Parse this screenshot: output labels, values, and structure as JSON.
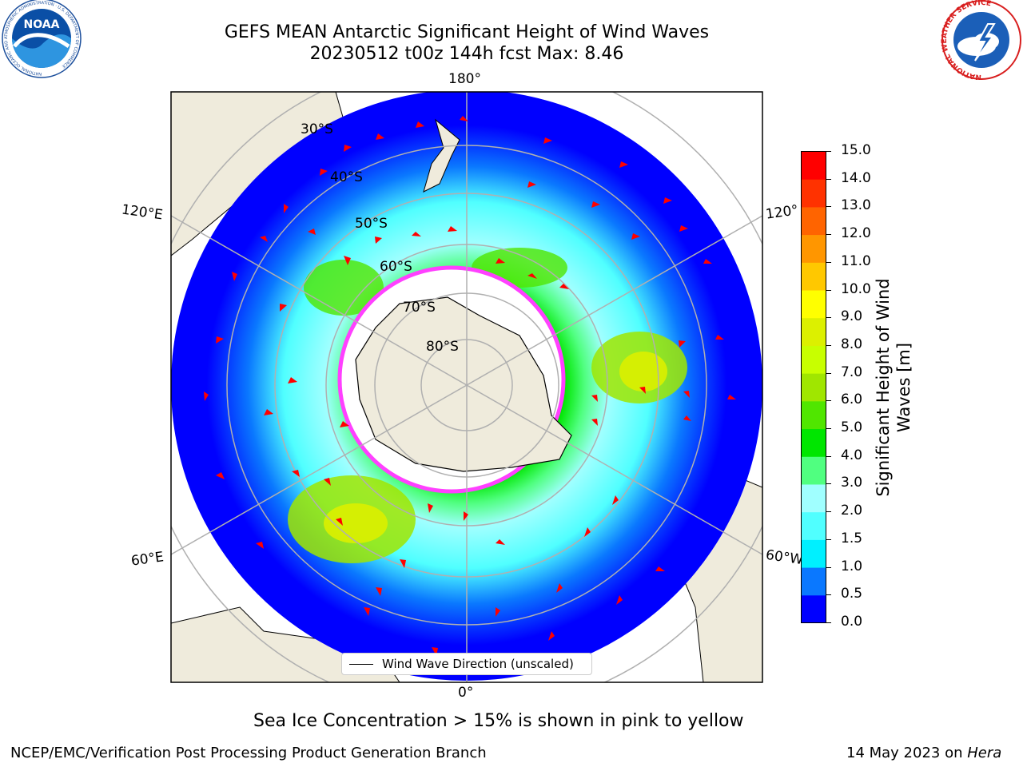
{
  "header": {
    "title_line1": "GEFS MEAN Antarctic Significant Height of Wind Waves",
    "title_line2": "20230512 t00z 144h fcst   Max: 8.46"
  },
  "logos": {
    "noaa_text": "NOAA",
    "noaa_ring_text": "NATIONAL OCEANIC AND ATMOSPHERIC ADMINISTRATION · U.S. DEPARTMENT OF COMMERCE",
    "nws_ring_text": "NATIONAL WEATHER SERVICE"
  },
  "map": {
    "projection": "south polar stereographic",
    "longitude_labels": {
      "top": "180°",
      "bottom": "0°",
      "left_upper": "120°E",
      "left_lower": "60°E",
      "right_upper": "120°",
      "right_lower": "60°W"
    },
    "latitude_labels": [
      "30°S",
      "40°S",
      "50°S",
      "60°S",
      "70°S",
      "80°S"
    ],
    "legend_label": "Wind Wave Direction (unscaled)",
    "arrow_color": "#ff0000",
    "land_color": "#efebdc"
  },
  "colorbar": {
    "label": "Significant Height of Wind Waves [m]",
    "ticks": [
      "0.0",
      "0.5",
      "1.0",
      "1.5",
      "2.0",
      "3.0",
      "4.0",
      "5.0",
      "6.0",
      "7.0",
      "8.0",
      "9.0",
      "10.0",
      "11.0",
      "12.0",
      "13.0",
      "14.0",
      "15.0"
    ],
    "colors": [
      "#0000ff",
      "#0a78ff",
      "#00f0ff",
      "#50ffff",
      "#a0ffff",
      "#50ff80",
      "#00e600",
      "#50e600",
      "#a0e600",
      "#c8ff00",
      "#dcf000",
      "#ffff00",
      "#ffc800",
      "#ff9600",
      "#ff6400",
      "#ff3200",
      "#ff0000"
    ]
  },
  "footer": {
    "sea_ice_note": "Sea Ice Concentration > 15% is shown in pink to yellow",
    "branch": "NCEP/EMC/Verification Post Processing Product Generation Branch",
    "date_text": "14 May 2023 on ",
    "host": "Hera"
  }
}
